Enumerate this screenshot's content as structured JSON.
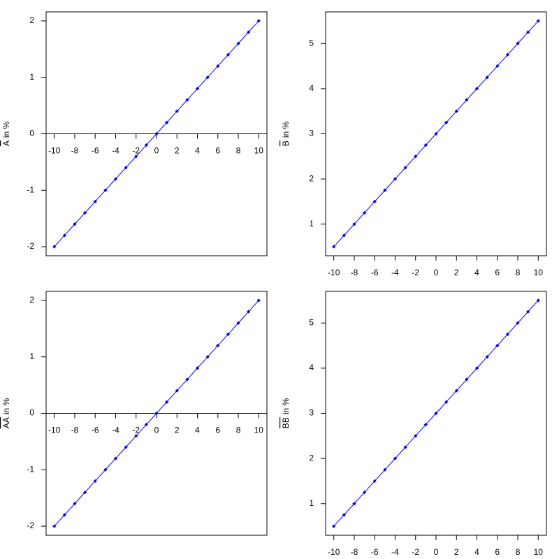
{
  "chart_data": [
    {
      "type": "line",
      "ylabel": {
        "over": "A",
        "rest": "in %"
      },
      "x_axis_position": "zero",
      "x": [
        -10,
        -9,
        -8,
        -7,
        -6,
        -5,
        -4,
        -3,
        -2,
        -1,
        0,
        1,
        2,
        3,
        4,
        5,
        6,
        7,
        8,
        9,
        10
      ],
      "series": [
        {
          "color": "#0000ff",
          "values": [
            -2,
            -1.8,
            -1.6,
            -1.4,
            -1.2,
            -1,
            -0.8,
            -0.6,
            -0.4,
            -0.2,
            0,
            0.2,
            0.4,
            0.6,
            0.8,
            1,
            1.2,
            1.4,
            1.6,
            1.8,
            2
          ]
        }
      ],
      "xlim": [
        -10.8,
        10.8
      ],
      "xticks": [
        -10,
        -8,
        -6,
        -4,
        -2,
        0,
        2,
        4,
        6,
        8,
        10
      ],
      "ylim": [
        -2.16,
        2.16
      ],
      "yticks": [
        -2,
        -1,
        0,
        1,
        2
      ]
    },
    {
      "type": "line",
      "ylabel": {
        "over": "B",
        "rest": "in %"
      },
      "x_axis_position": "bottom",
      "x": [
        -10,
        -9,
        -8,
        -7,
        -6,
        -5,
        -4,
        -3,
        -2,
        -1,
        0,
        1,
        2,
        3,
        4,
        5,
        6,
        7,
        8,
        9,
        10
      ],
      "series": [
        {
          "color": "#0000ff",
          "values": [
            0.5,
            0.75,
            1,
            1.25,
            1.5,
            1.75,
            2,
            2.25,
            2.5,
            2.75,
            3,
            3.25,
            3.5,
            3.75,
            4,
            4.25,
            4.5,
            4.75,
            5,
            5.25,
            5.5
          ]
        }
      ],
      "xlim": [
        -10.8,
        10.8
      ],
      "xticks": [
        -10,
        -8,
        -6,
        -4,
        -2,
        0,
        2,
        4,
        6,
        8,
        10
      ],
      "ylim": [
        0.3,
        5.7
      ],
      "yticks": [
        1,
        2,
        3,
        4,
        5
      ]
    },
    {
      "type": "line",
      "ylabel": {
        "over": "AA",
        "rest": "in %"
      },
      "x_axis_position": "zero",
      "x": [
        -10,
        -9,
        -8,
        -7,
        -6,
        -5,
        -4,
        -3,
        -2,
        -1,
        0,
        1,
        2,
        3,
        4,
        5,
        6,
        7,
        8,
        9,
        10
      ],
      "series": [
        {
          "color": "#0000ff",
          "values": [
            -2,
            -1.8,
            -1.6,
            -1.4,
            -1.2,
            -1,
            -0.8,
            -0.6,
            -0.4,
            -0.2,
            0,
            0.2,
            0.4,
            0.6,
            0.8,
            1,
            1.2,
            1.4,
            1.6,
            1.8,
            2
          ]
        }
      ],
      "xlim": [
        -10.8,
        10.8
      ],
      "xticks": [
        -10,
        -8,
        -6,
        -4,
        -2,
        0,
        2,
        4,
        6,
        8,
        10
      ],
      "ylim": [
        -2.16,
        2.16
      ],
      "yticks": [
        -2,
        -1,
        0,
        1,
        2
      ]
    },
    {
      "type": "line",
      "ylabel": {
        "over": "BB",
        "rest": "in %"
      },
      "x_axis_position": "bottom",
      "x": [
        -10,
        -9,
        -8,
        -7,
        -6,
        -5,
        -4,
        -3,
        -2,
        -1,
        0,
        1,
        2,
        3,
        4,
        5,
        6,
        7,
        8,
        9,
        10
      ],
      "series": [
        {
          "color": "#0000ff",
          "values": [
            0.5,
            0.75,
            1,
            1.25,
            1.5,
            1.75,
            2,
            2.25,
            2.5,
            2.75,
            3,
            3.25,
            3.5,
            3.75,
            4,
            4.25,
            4.5,
            4.75,
            5,
            5.25,
            5.5
          ]
        }
      ],
      "xlim": [
        -10.8,
        10.8
      ],
      "xticks": [
        -10,
        -8,
        -6,
        -4,
        -2,
        0,
        2,
        4,
        6,
        8,
        10
      ],
      "ylim": [
        0.3,
        5.7
      ],
      "yticks": [
        1,
        2,
        3,
        4,
        5
      ]
    }
  ]
}
